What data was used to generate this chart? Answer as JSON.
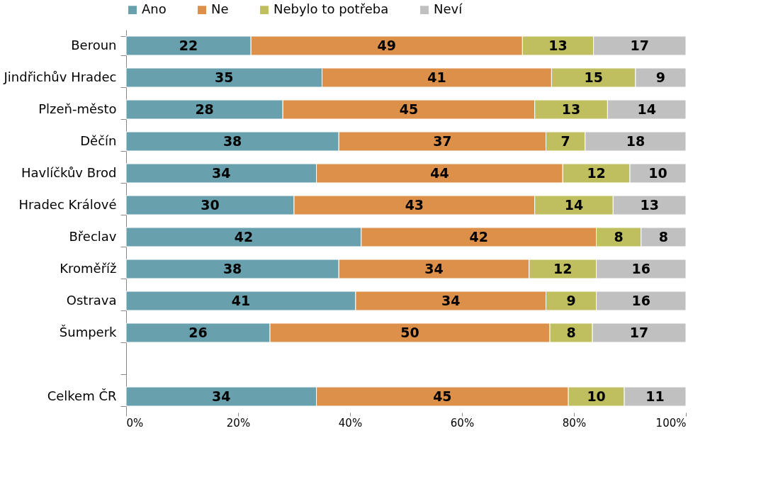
{
  "chart_data": {
    "type": "bar",
    "orientation": "horizontal",
    "stacked": true,
    "legend": "top",
    "categories": [
      "Beroun",
      "Jindřichův Hradec",
      "Plzeň-město",
      "Děčín",
      "Havlíčkův Brod",
      "Hradec Králové",
      "Břeclav",
      "Kroměříž",
      "Ostrava",
      "Šumperk",
      null,
      "Celkem ČR"
    ],
    "xlim": [
      0,
      100
    ],
    "xticks": [
      {
        "value": 0,
        "label": "0%"
      },
      {
        "value": 20,
        "label": "20%"
      },
      {
        "value": 40,
        "label": "40%"
      },
      {
        "value": 60,
        "label": "60%"
      },
      {
        "value": 80,
        "label": "80%"
      },
      {
        "value": 100,
        "label": "100%"
      }
    ],
    "series": [
      {
        "name": "Ano",
        "color": "#68a0ad",
        "values": [
          22.3,
          35,
          28,
          38,
          34,
          30,
          42,
          38,
          41,
          25.7,
          null,
          34
        ],
        "value_labels": [
          "22",
          "35",
          "28",
          "38",
          "34",
          "30",
          "42",
          "38",
          "41",
          "26",
          null,
          "34"
        ]
      },
      {
        "name": "Ne",
        "color": "#dc9049",
        "values": [
          48.5,
          41,
          45,
          37,
          44,
          43,
          42,
          34,
          34,
          50.0,
          null,
          45
        ],
        "value_labels": [
          "49",
          "41",
          "45",
          "37",
          "44",
          "43",
          "42",
          "34",
          "34",
          "50",
          null,
          "45"
        ]
      },
      {
        "name": "Nebylo to potřeba",
        "color": "#c0bf5f",
        "values": [
          12.7,
          15,
          13,
          7,
          12,
          14,
          8,
          12,
          9,
          7.6,
          null,
          10
        ],
        "value_labels": [
          "13",
          "15",
          "13",
          "7",
          "12",
          "14",
          "8",
          "12",
          "9",
          "8",
          null,
          "10"
        ]
      },
      {
        "name": "Neví",
        "color": "#c0c0c0",
        "values": [
          16.5,
          9,
          14,
          18,
          10,
          13,
          8,
          16,
          16,
          16.7,
          null,
          11
        ],
        "value_labels": [
          "17",
          "9",
          "14",
          "18",
          "10",
          "13",
          "8",
          "16",
          "16",
          "17",
          null,
          "11"
        ]
      }
    ]
  }
}
